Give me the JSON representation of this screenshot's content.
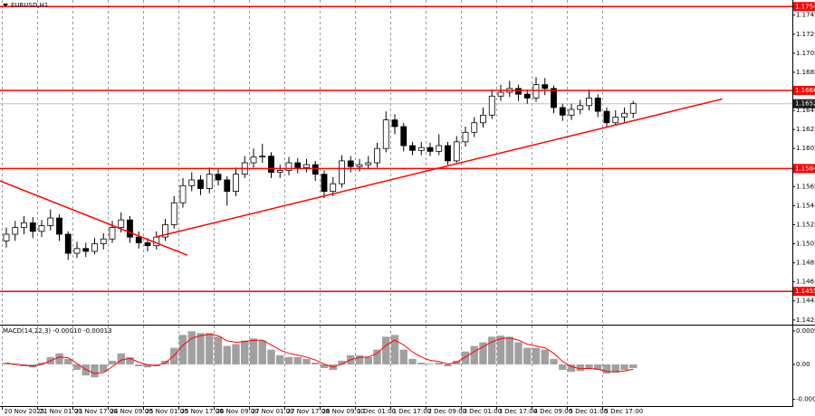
{
  "chart_data": [
    {
      "type": "candlestick",
      "title": "EURUSD,H1",
      "categories": [
        "20 Nov 2025",
        null,
        null,
        null,
        "21 Nov 01:00",
        null,
        null,
        null,
        "21 Nov 17:00",
        null,
        null,
        null,
        "24 Nov 09:00",
        null,
        null,
        null,
        "25 Nov 01:00",
        null,
        null,
        null,
        "25 Nov 17:00",
        null,
        null,
        null,
        "26 Nov 09:00",
        null,
        null,
        null,
        "27 Nov 01:00",
        null,
        null,
        null,
        "27 Nov 17:00",
        null,
        null,
        null,
        "28 Nov 09:00",
        null,
        null,
        null,
        "1 Dec 01:00",
        null,
        null,
        null,
        "1 Dec 17:00",
        null,
        null,
        null,
        "2 Dec 09:00",
        null,
        null,
        null,
        "3 Dec 01:00",
        null,
        null,
        null,
        "3 Dec 17:00",
        null,
        null,
        null,
        "4 Dec 09:00",
        null,
        null,
        null,
        "5 Dec 01:00",
        null,
        null,
        null,
        "5 Dec 17:00",
        null,
        null,
        null
      ],
      "ohlc": [
        [
          1.1508,
          1.1522,
          1.1501,
          1.1515
        ],
        [
          1.1515,
          1.1529,
          1.1508,
          1.1522
        ],
        [
          1.1522,
          1.1534,
          1.1515,
          1.1527
        ],
        [
          1.1527,
          1.1533,
          1.1511,
          1.1518
        ],
        [
          1.1518,
          1.153,
          1.1512,
          1.1524
        ],
        [
          1.1524,
          1.1541,
          1.1519,
          1.1532
        ],
        [
          1.1532,
          1.1536,
          1.1508,
          1.1515
        ],
        [
          1.1515,
          1.1518,
          1.1488,
          1.1495
        ],
        [
          1.1495,
          1.1507,
          1.149,
          1.15
        ],
        [
          1.15,
          1.1506,
          1.1491,
          1.1497
        ],
        [
          1.1497,
          1.1511,
          1.1494,
          1.1505
        ],
        [
          1.1505,
          1.1516,
          1.1499,
          1.151
        ],
        [
          1.151,
          1.1529,
          1.1506,
          1.1522
        ],
        [
          1.1522,
          1.1538,
          1.1517,
          1.153
        ],
        [
          1.153,
          1.1534,
          1.1506,
          1.1512
        ],
        [
          1.1512,
          1.1518,
          1.15,
          1.1506
        ],
        [
          1.1506,
          1.1511,
          1.1497,
          1.1503
        ],
        [
          1.1503,
          1.1518,
          1.1499,
          1.1512
        ],
        [
          1.1512,
          1.1531,
          1.1508,
          1.1525
        ],
        [
          1.1525,
          1.1555,
          1.1521,
          1.1548
        ],
        [
          1.1548,
          1.1574,
          1.1543,
          1.1566
        ],
        [
          1.1566,
          1.158,
          1.156,
          1.1572
        ],
        [
          1.1572,
          1.1577,
          1.1556,
          1.1563
        ],
        [
          1.1563,
          1.1585,
          1.1558,
          1.1578
        ],
        [
          1.1578,
          1.1584,
          1.1566,
          1.1572
        ],
        [
          1.1572,
          1.1576,
          1.1545,
          1.156
        ],
        [
          1.156,
          1.1585,
          1.1555,
          1.1578
        ],
        [
          1.1578,
          1.1597,
          1.1574,
          1.159
        ],
        [
          1.159,
          1.1605,
          1.1585,
          1.1596
        ],
        [
          1.1596,
          1.161,
          1.159,
          1.1597
        ],
        [
          1.1597,
          1.1601,
          1.1574,
          1.158
        ],
        [
          1.158,
          1.1588,
          1.1574,
          1.1582
        ],
        [
          1.1582,
          1.1596,
          1.1577,
          1.159
        ],
        [
          1.159,
          1.1595,
          1.1579,
          1.1585
        ],
        [
          1.1585,
          1.1594,
          1.158,
          1.1588
        ],
        [
          1.1588,
          1.1592,
          1.1571,
          1.1578
        ],
        [
          1.1578,
          1.1582,
          1.1553,
          1.156
        ],
        [
          1.156,
          1.1575,
          1.1555,
          1.1568
        ],
        [
          1.1568,
          1.1598,
          1.1564,
          1.1592
        ],
        [
          1.1592,
          1.1597,
          1.158,
          1.1586
        ],
        [
          1.1586,
          1.1594,
          1.1581,
          1.1588
        ],
        [
          1.1588,
          1.1597,
          1.1583,
          1.159
        ],
        [
          1.159,
          1.1611,
          1.1585,
          1.1605
        ],
        [
          1.1605,
          1.1644,
          1.1601,
          1.1635
        ],
        [
          1.1635,
          1.1641,
          1.162,
          1.1628
        ],
        [
          1.1628,
          1.1632,
          1.1602,
          1.1608
        ],
        [
          1.1608,
          1.1612,
          1.1598,
          1.1603
        ],
        [
          1.1603,
          1.1612,
          1.1598,
          1.1606
        ],
        [
          1.1606,
          1.1611,
          1.1597,
          1.1602
        ],
        [
          1.1602,
          1.162,
          1.1598,
          1.1608
        ],
        [
          1.1608,
          1.1612,
          1.1588,
          1.1592
        ],
        [
          1.1592,
          1.1618,
          1.159,
          1.1612
        ],
        [
          1.1612,
          1.1628,
          1.1607,
          1.1622
        ],
        [
          1.1622,
          1.1638,
          1.1617,
          1.1632
        ],
        [
          1.1632,
          1.1648,
          1.1627,
          1.164
        ],
        [
          1.164,
          1.1667,
          1.1636,
          1.166
        ],
        [
          1.166,
          1.1672,
          1.1655,
          1.1664
        ],
        [
          1.1664,
          1.1676,
          1.1659,
          1.1668
        ],
        [
          1.1668,
          1.1672,
          1.1655,
          1.1662
        ],
        [
          1.1662,
          1.1667,
          1.1652,
          1.1658
        ],
        [
          1.1658,
          1.168,
          1.1654,
          1.1672
        ],
        [
          1.1672,
          1.1679,
          1.1661,
          1.1668
        ],
        [
          1.1668,
          1.1671,
          1.1642,
          1.1648
        ],
        [
          1.1648,
          1.1652,
          1.1634,
          1.164
        ],
        [
          1.164,
          1.1652,
          1.1635,
          1.1646
        ],
        [
          1.1646,
          1.1656,
          1.1641,
          1.165
        ],
        [
          1.165,
          1.1667,
          1.1645,
          1.1658
        ],
        [
          1.1658,
          1.1662,
          1.1638,
          1.1644
        ],
        [
          1.1644,
          1.1648,
          1.1627,
          1.1632
        ],
        [
          1.1632,
          1.1645,
          1.163,
          1.1638
        ],
        [
          1.1638,
          1.1648,
          1.1633,
          1.1642
        ],
        [
          1.1642,
          1.1655,
          1.1637,
          1.1652
        ]
      ],
      "ylim": [
        1.1421,
        1.1759
      ],
      "yticks": [
        1.1425,
        1.1445,
        1.1465,
        1.1485,
        1.1505,
        1.1525,
        1.1545,
        1.1565,
        1.1585,
        1.1605,
        1.1625,
        1.1645,
        1.1665,
        1.1685,
        1.1705,
        1.1725,
        1.1745
      ],
      "levels": [
        1.1754,
        1.1666,
        1.1584,
        1.1455
      ],
      "level_color": "#ff0000",
      "current_price": 1.1652,
      "trendlines": [
        {
          "x": [
            16.9,
            81.1
          ],
          "y": [
            1.1512,
            1.1657
          ]
        },
        {
          "x": [
            -0.72,
            20.5
          ],
          "y": [
            1.1571,
            1.1493
          ]
        }
      ],
      "trend_color": "#ff0000",
      "grid": true
    },
    {
      "type": "macd",
      "title": "MACD(14,22,3) -0.00010 -0.00013",
      "histogram": [
        5e-05,
        -2e-05,
        -5e-05,
        -8e-05,
        5e-05,
        0.0002,
        0.0003,
        0.00015,
        -0.00015,
        -0.0003,
        -0.00035,
        -0.0002,
        0.0001,
        0.0003,
        0.0002,
        -5e-05,
        -8e-05,
        -5e-05,
        0.0001,
        0.00045,
        0.0008,
        0.0009,
        0.00085,
        0.00085,
        0.00075,
        0.0005,
        0.00055,
        0.00065,
        0.0007,
        0.00065,
        0.0004,
        0.00025,
        0.0002,
        0.0002,
        0.00015,
        5e-05,
        -0.0001,
        -0.00015,
        0.0001,
        0.00025,
        0.00025,
        0.0002,
        0.0004,
        0.00075,
        0.0008,
        0.0004,
        0.00015,
        5e-05,
        2e-05,
        5e-05,
        -5e-05,
        0.0001,
        0.00035,
        0.0005,
        0.0006,
        0.00075,
        0.00078,
        0.00075,
        0.0006,
        0.00045,
        0.00045,
        0.0004,
        0.00015,
        -0.00015,
        -0.0002,
        -0.00018,
        -0.0001,
        -0.00015,
        -0.00025,
        -0.00022,
        -0.00015,
        -0.0001
      ],
      "signal": [
        3e-05,
        1e-05,
        -2e-05,
        -5e-05,
        0,
        0.0001,
        0.0002,
        0.00018,
        2e-05,
        -0.00014,
        -0.00025,
        -0.00022,
        -6e-05,
        0.00012,
        0.00016,
        6e-05,
        -1e-05,
        -3e-05,
        4e-05,
        0.00024,
        0.00052,
        0.00071,
        0.00078,
        0.00082,
        0.00078,
        0.00064,
        0.0006,
        0.00062,
        0.00066,
        0.00066,
        0.00053,
        0.00039,
        0.0003,
        0.00025,
        0.0002,
        0.00012,
        1e-05,
        -7e-05,
        1e-05,
        0.00013,
        0.00019,
        0.0002,
        0.0003,
        0.00052,
        0.00066,
        0.00053,
        0.00034,
        0.0002,
        0.00011,
        8e-05,
        1e-05,
        6e-05,
        0.0002,
        0.00035,
        0.00048,
        0.00061,
        0.0007,
        0.00072,
        0.00066,
        0.00055,
        0.0005,
        0.00045,
        0.0003,
        8e-05,
        -6e-05,
        -0.00012,
        -0.00011,
        -0.00013,
        -0.00019,
        -0.0002,
        -0.00018,
        -0.00013
      ],
      "histogram_color": "#a0a0a0",
      "signal_color": "#ff0000",
      "ylim": [
        -0.00113,
        0.00103
      ],
      "yticks": [
        0.00091,
        {
          "value": 0,
          "label": "0.00"
        },
        -0.00095
      ]
    }
  ]
}
